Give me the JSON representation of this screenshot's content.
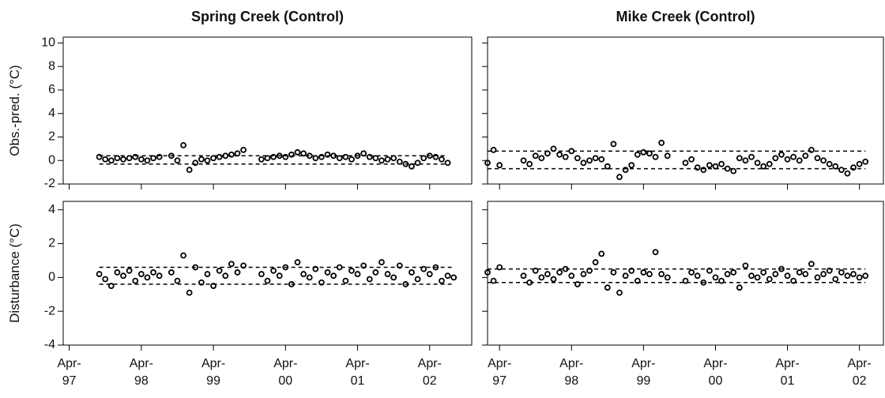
{
  "chart_data": [
    {
      "type": "scatter",
      "title": "Spring Creek (Control)",
      "ylabel": "Obs.-pred. (°C)",
      "color": "#000000",
      "xlim": [
        "1997-03",
        "2002-11"
      ],
      "ylim": [
        -2,
        10.5
      ],
      "yticks": [
        -2,
        0,
        2,
        4,
        6,
        8,
        10
      ],
      "xticks": [
        {
          "value": "1997-04",
          "label": "Apr-\n97"
        },
        {
          "value": "1998-04",
          "label": "Apr-\n98"
        },
        {
          "value": "1999-04",
          "label": "Apr-\n99"
        },
        {
          "value": "2000-04",
          "label": "Apr-\n00"
        },
        {
          "value": "2001-04",
          "label": "Apr-\n01"
        },
        {
          "value": "2002-04",
          "label": "Apr-\n02"
        }
      ],
      "ytick_labels": true,
      "xtick_labels": false,
      "x": [
        "1997-09",
        "1997-10",
        "1997-11",
        "1997-12",
        "1998-01",
        "1998-02",
        "1998-03",
        "1998-04",
        "1998-05",
        "1998-06",
        "1998-07",
        "1998-09",
        "1998-10",
        "1998-11",
        "1998-12",
        "1999-01",
        "1999-02",
        "1999-03",
        "1999-04",
        "1999-05",
        "1999-06",
        "1999-07",
        "1999-08",
        "1999-09",
        "1999-12",
        "2000-01",
        "2000-02",
        "2000-03",
        "2000-04",
        "2000-05",
        "2000-06",
        "2000-07",
        "2000-08",
        "2000-09",
        "2000-10",
        "2000-11",
        "2000-12",
        "2001-01",
        "2001-02",
        "2001-03",
        "2001-04",
        "2001-05",
        "2001-06",
        "2001-07",
        "2001-08",
        "2001-09",
        "2001-10",
        "2001-11",
        "2001-12",
        "2002-01",
        "2002-02",
        "2002-03",
        "2002-04",
        "2002-05",
        "2002-06",
        "2002-07"
      ],
      "values": [
        0.3,
        0.1,
        0.0,
        0.2,
        0.1,
        0.2,
        0.3,
        0.1,
        0.0,
        0.2,
        0.3,
        0.4,
        0.0,
        1.3,
        -0.8,
        -0.2,
        0.1,
        0.0,
        0.2,
        0.3,
        0.4,
        0.5,
        0.6,
        0.9,
        0.1,
        0.2,
        0.3,
        0.4,
        0.3,
        0.5,
        0.7,
        0.6,
        0.4,
        0.2,
        0.3,
        0.5,
        0.4,
        0.2,
        0.3,
        0.1,
        0.4,
        0.6,
        0.3,
        0.2,
        0.0,
        0.1,
        0.2,
        -0.1,
        -0.3,
        -0.5,
        -0.2,
        0.2,
        0.4,
        0.3,
        0.1,
        -0.2
      ],
      "thresholds": [
        {
          "x": [
            "1997-09",
            "2002-07"
          ],
          "values": [
            -0.3,
            0.4
          ]
        }
      ]
    },
    {
      "type": "scatter",
      "title": "Mike Creek (Control)",
      "color": "#000000",
      "xlim": [
        "1997-02",
        "2002-08"
      ],
      "ylim": [
        -2,
        10.5
      ],
      "yticks": [
        -2,
        0,
        2,
        4,
        6,
        8,
        10
      ],
      "xticks": [
        "1997-04",
        "1998-04",
        "1999-04",
        "2000-04",
        "2001-04",
        "2002-04"
      ],
      "ytick_labels": false,
      "xtick_labels": false,
      "x": [
        "1997-02",
        "1997-03",
        "1997-04",
        "1997-08",
        "1997-09",
        "1997-10",
        "1997-11",
        "1997-12",
        "1998-01",
        "1998-02",
        "1998-03",
        "1998-04",
        "1998-05",
        "1998-06",
        "1998-07",
        "1998-08",
        "1998-09",
        "1998-10",
        "1998-11",
        "1998-12",
        "1999-01",
        "1999-02",
        "1999-03",
        "1999-04",
        "1999-05",
        "1999-06",
        "1999-07",
        "1999-08",
        "1999-11",
        "1999-12",
        "2000-01",
        "2000-02",
        "2000-03",
        "2000-04",
        "2000-05",
        "2000-06",
        "2000-07",
        "2000-08",
        "2000-09",
        "2000-10",
        "2000-11",
        "2000-12",
        "2001-01",
        "2001-02",
        "2001-03",
        "2001-04",
        "2001-05",
        "2001-06",
        "2001-07",
        "2001-08",
        "2001-09",
        "2001-10",
        "2001-11",
        "2001-12",
        "2002-01",
        "2002-02",
        "2002-03",
        "2002-04",
        "2002-05"
      ],
      "values": [
        -0.2,
        0.9,
        -0.4,
        0.0,
        -0.3,
        0.4,
        0.2,
        0.6,
        1.0,
        0.5,
        0.3,
        0.8,
        0.2,
        -0.2,
        0.0,
        0.2,
        0.1,
        -0.5,
        1.4,
        -1.4,
        -0.8,
        -0.4,
        0.5,
        0.7,
        0.6,
        0.3,
        1.5,
        0.4,
        -0.2,
        0.1,
        -0.6,
        -0.8,
        -0.4,
        -0.5,
        -0.3,
        -0.7,
        -0.9,
        0.2,
        0.0,
        0.3,
        -0.2,
        -0.5,
        -0.3,
        0.2,
        0.5,
        0.1,
        0.3,
        0.0,
        0.4,
        0.9,
        0.2,
        0.0,
        -0.3,
        -0.5,
        -0.8,
        -1.1,
        -0.6,
        -0.3,
        -0.1
      ],
      "thresholds": [
        {
          "x": [
            "1997-02",
            "2002-05"
          ],
          "values": [
            -0.7,
            0.8
          ]
        }
      ]
    },
    {
      "type": "scatter",
      "ylabel": "Disturbance (°C)",
      "color": "#000000",
      "xlim": [
        "1997-03",
        "2002-11"
      ],
      "ylim": [
        -4,
        4.5
      ],
      "yticks": [
        -4,
        -2,
        0,
        2,
        4
      ],
      "xticks": [
        {
          "value": "1997-04",
          "label": "Apr-\n97"
        },
        {
          "value": "1998-04",
          "label": "Apr-\n98"
        },
        {
          "value": "1999-04",
          "label": "Apr-\n99"
        },
        {
          "value": "2000-04",
          "label": "Apr-\n00"
        },
        {
          "value": "2001-04",
          "label": "Apr-\n01"
        },
        {
          "value": "2002-04",
          "label": "Apr-\n02"
        }
      ],
      "ytick_labels": true,
      "xtick_labels": true,
      "x": [
        "1997-09",
        "1997-10",
        "1997-11",
        "1997-12",
        "1998-01",
        "1998-02",
        "1998-03",
        "1998-04",
        "1998-05",
        "1998-06",
        "1998-07",
        "1998-09",
        "1998-10",
        "1998-11",
        "1998-12",
        "1999-01",
        "1999-02",
        "1999-03",
        "1999-04",
        "1999-05",
        "1999-06",
        "1999-07",
        "1999-08",
        "1999-09",
        "1999-12",
        "2000-01",
        "2000-02",
        "2000-03",
        "2000-04",
        "2000-05",
        "2000-06",
        "2000-07",
        "2000-08",
        "2000-09",
        "2000-10",
        "2000-11",
        "2000-12",
        "2001-01",
        "2001-02",
        "2001-03",
        "2001-04",
        "2001-05",
        "2001-06",
        "2001-07",
        "2001-08",
        "2001-09",
        "2001-10",
        "2001-11",
        "2001-12",
        "2002-01",
        "2002-02",
        "2002-03",
        "2002-04",
        "2002-05",
        "2002-06",
        "2002-07",
        "2002-08"
      ],
      "values": [
        0.2,
        -0.1,
        -0.5,
        0.3,
        0.1,
        0.4,
        -0.2,
        0.2,
        0.0,
        0.3,
        0.1,
        0.3,
        -0.2,
        1.3,
        -0.9,
        0.6,
        -0.3,
        0.2,
        -0.5,
        0.4,
        0.1,
        0.8,
        0.3,
        0.7,
        0.2,
        -0.2,
        0.4,
        0.1,
        0.6,
        -0.4,
        0.9,
        0.2,
        0.0,
        0.5,
        -0.3,
        0.3,
        0.1,
        0.6,
        -0.2,
        0.4,
        0.2,
        0.7,
        -0.1,
        0.3,
        0.9,
        0.2,
        0.0,
        0.7,
        -0.4,
        0.3,
        -0.1,
        0.5,
        0.2,
        0.6,
        -0.2,
        0.1,
        0.0
      ],
      "thresholds": [
        {
          "x": [
            "1997-09",
            "2002-08"
          ],
          "values": [
            -0.4,
            0.6
          ]
        }
      ]
    },
    {
      "type": "scatter",
      "color": "#000000",
      "xlim": [
        "1997-02",
        "2002-08"
      ],
      "ylim": [
        -4,
        4.5
      ],
      "yticks": [
        -4,
        -2,
        0,
        2,
        4
      ],
      "xticks": [
        {
          "value": "1997-04",
          "label": "Apr-\n97"
        },
        {
          "value": "1998-04",
          "label": "Apr-\n98"
        },
        {
          "value": "1999-04",
          "label": "Apr-\n99"
        },
        {
          "value": "2000-04",
          "label": "Apr-\n00"
        },
        {
          "value": "2001-04",
          "label": "Apr-\n01"
        },
        {
          "value": "2002-04",
          "label": "Apr-\n02"
        }
      ],
      "ytick_labels": false,
      "xtick_labels": true,
      "x": [
        "1997-02",
        "1997-03",
        "1997-04",
        "1997-08",
        "1997-09",
        "1997-10",
        "1997-11",
        "1997-12",
        "1998-01",
        "1998-02",
        "1998-03",
        "1998-04",
        "1998-05",
        "1998-06",
        "1998-07",
        "1998-08",
        "1998-09",
        "1998-10",
        "1998-11",
        "1998-12",
        "1999-01",
        "1999-02",
        "1999-03",
        "1999-04",
        "1999-05",
        "1999-06",
        "1999-07",
        "1999-08",
        "1999-11",
        "1999-12",
        "2000-01",
        "2000-02",
        "2000-03",
        "2000-04",
        "2000-05",
        "2000-06",
        "2000-07",
        "2000-08",
        "2000-09",
        "2000-10",
        "2000-11",
        "2000-12",
        "2001-01",
        "2001-02",
        "2001-03",
        "2001-04",
        "2001-05",
        "2001-06",
        "2001-07",
        "2001-08",
        "2001-09",
        "2001-10",
        "2001-11",
        "2001-12",
        "2002-01",
        "2002-02",
        "2002-03",
        "2002-04",
        "2002-05"
      ],
      "values": [
        0.3,
        -0.2,
        0.6,
        0.1,
        -0.3,
        0.4,
        0.0,
        0.2,
        -0.1,
        0.3,
        0.5,
        0.1,
        -0.4,
        0.2,
        0.4,
        0.9,
        1.4,
        -0.6,
        0.3,
        -0.9,
        0.1,
        0.4,
        -0.2,
        0.3,
        0.2,
        1.5,
        0.2,
        0.0,
        -0.2,
        0.3,
        0.1,
        -0.3,
        0.4,
        0.0,
        -0.2,
        0.2,
        0.3,
        -0.6,
        0.7,
        0.1,
        0.0,
        0.3,
        -0.1,
        0.2,
        0.5,
        0.1,
        -0.2,
        0.3,
        0.2,
        0.8,
        0.0,
        0.2,
        0.4,
        -0.1,
        0.3,
        0.1,
        0.2,
        0.0,
        0.1
      ],
      "thresholds": [
        {
          "x": [
            "1997-02",
            "2002-05"
          ],
          "values": [
            -0.3,
            0.5
          ]
        }
      ]
    }
  ]
}
